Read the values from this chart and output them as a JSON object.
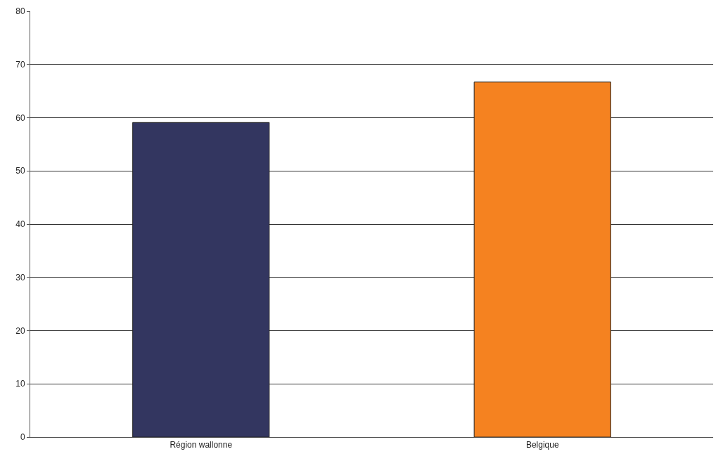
{
  "chart_data": {
    "type": "bar",
    "categories": [
      "Région wallonne",
      "Belgique"
    ],
    "values": [
      59.1,
      66.7
    ],
    "colors": [
      "#333660",
      "#f58220"
    ],
    "ylim": [
      0,
      80
    ],
    "yticks": [
      0,
      10,
      20,
      30,
      40,
      50,
      60,
      70,
      80
    ],
    "grid": "y"
  }
}
